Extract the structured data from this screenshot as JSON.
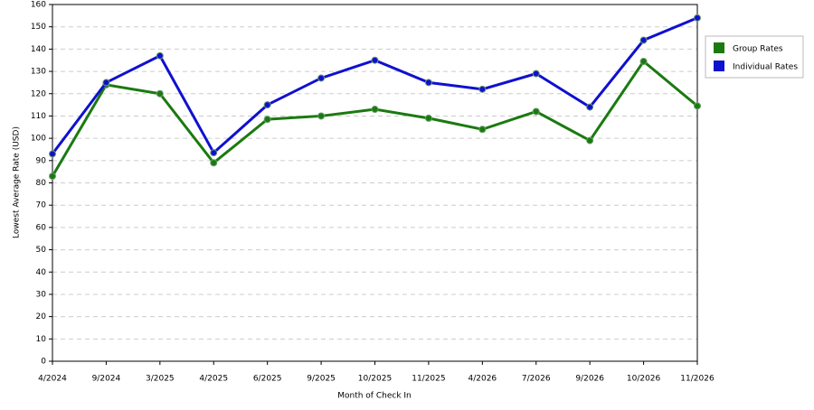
{
  "chart_data": {
    "type": "line",
    "x_label": "Month of Check In",
    "y_label": "Lowest Average Rate (USD)",
    "categories": [
      "4/2024",
      "9/2024",
      "3/2025",
      "4/2025",
      "6/2025",
      "9/2025",
      "10/2025",
      "11/2025",
      "4/2026",
      "7/2026",
      "9/2026",
      "10/2026",
      "11/2026"
    ],
    "series": [
      {
        "name": "Group Rates",
        "color": "#1a7a10",
        "values": [
          83,
          124,
          120,
          89,
          108.5,
          110,
          113,
          109,
          104,
          112,
          99,
          134.5,
          114.5
        ]
      },
      {
        "name": "Individual Rates",
        "color": "#1010d0",
        "values": [
          93,
          125,
          137,
          93.5,
          115,
          127,
          135,
          125,
          122,
          129,
          114,
          144,
          154
        ]
      }
    ],
    "ylim": [
      0,
      160
    ],
    "yticks": [
      0,
      10,
      20,
      30,
      40,
      50,
      60,
      70,
      80,
      90,
      100,
      110,
      120,
      130,
      140,
      150,
      160
    ],
    "grid": true,
    "legend": "top-right"
  }
}
